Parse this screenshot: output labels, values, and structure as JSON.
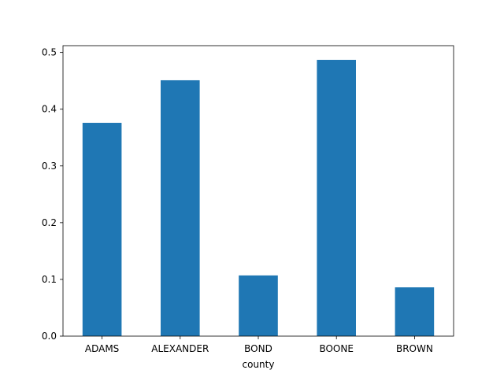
{
  "chart_data": {
    "type": "bar",
    "title": "",
    "xlabel": "county",
    "ylabel": "",
    "categories": [
      "ADAMS",
      "ALEXANDER",
      "BOND",
      "BOONE",
      "BROWN"
    ],
    "values": [
      0.376,
      0.451,
      0.107,
      0.487,
      0.086
    ],
    "ylim": [
      0,
      0.512
    ],
    "yticks": [
      0.0,
      0.1,
      0.2,
      0.3,
      0.4,
      0.5
    ],
    "ytick_labels": [
      "0.0",
      "0.1",
      "0.2",
      "0.3",
      "0.4",
      "0.5"
    ],
    "grid": false,
    "legend": "none",
    "bar_color": "#1f77b4"
  }
}
